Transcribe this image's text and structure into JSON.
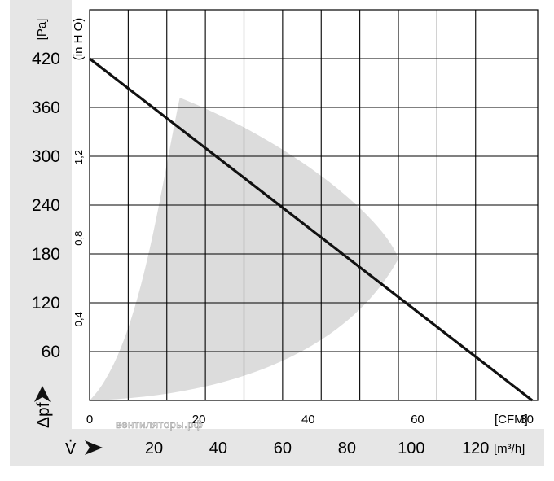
{
  "chart_data": {
    "type": "line",
    "y_axis_left": {
      "unit": "[Pa]",
      "ticks": [
        60,
        120,
        180,
        240,
        300,
        360,
        420
      ],
      "ylim": [
        0,
        480
      ],
      "label": "Δpf"
    },
    "y_axis_inner": {
      "unit": "(in H O)",
      "ticks": [
        "0,4",
        "0,8",
        "1,2"
      ],
      "values": [
        0.4,
        0.8,
        1.2
      ]
    },
    "x_axis_top": {
      "unit": "[CFM]",
      "ticks": [
        0,
        20,
        40,
        60,
        80
      ],
      "xlim": [
        0,
        82
      ]
    },
    "x_axis_bottom": {
      "unit": "[m³/h]",
      "ticks": [
        20,
        40,
        60,
        80,
        100,
        120
      ],
      "label": "V̇"
    },
    "series": [
      {
        "x": [
          0,
          81
        ],
        "y": [
          420,
          0
        ],
        "color": "#111111"
      }
    ],
    "operating_region": {
      "color": "#dcdcdc",
      "points": [
        [
          16.5,
          372
        ],
        [
          56.5,
          174
        ],
        [
          0,
          0
        ]
      ]
    },
    "grid": true
  },
  "watermark": "вентиляторы.рф"
}
